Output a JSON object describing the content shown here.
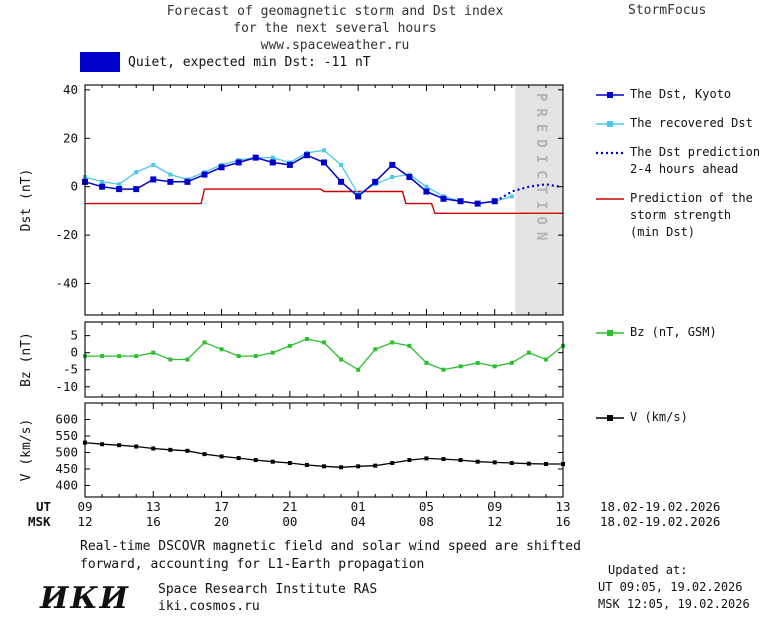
{
  "header": {
    "title_line1": "Forecast of geomagnetic storm and Dst index",
    "title_line2": "for the next several hours",
    "title_line3": "www.spaceweather.ru",
    "brand": "StormFocus"
  },
  "status": {
    "swatch_color": "#0000cc",
    "label": "Quiet, expected min Dst: -11 nT"
  },
  "chart_data": [
    {
      "type": "line",
      "ylabel": "Dst (nT)",
      "ylim": [
        -53,
        42
      ],
      "yticks": [
        40,
        20,
        0,
        -20,
        -40
      ],
      "x_unit": "hours from 09:00 UT 18.02.2026",
      "prediction_band": {
        "start_hour": 25.2,
        "end_hour": 28,
        "label": "PREDICTION",
        "fill": "#e4e4e4"
      },
      "series": [
        {
          "id": "storm-strength-prediction",
          "name": "Prediction of the storm strength (min Dst)",
          "color": "#cc0000",
          "marker": "none",
          "line_style": "solid",
          "line_width": 1.4,
          "x": [
            0,
            6.8,
            7,
            13.8,
            14,
            18.6,
            18.8,
            20.3,
            20.5,
            28
          ],
          "y": [
            -7,
            -7,
            -1,
            -1,
            -2,
            -2,
            -7,
            -7,
            -11,
            -11
          ]
        },
        {
          "id": "recovered-dst",
          "name": "The recovered Dst",
          "color": "#4cc8e8",
          "marker": "square",
          "marker_size": 4,
          "line_style": "solid",
          "line_width": 1.3,
          "x": [
            0,
            1,
            2,
            3,
            4,
            5,
            6,
            7,
            8,
            9,
            10,
            11,
            12,
            13,
            14,
            15,
            16,
            17,
            18,
            19,
            20,
            21,
            22,
            23,
            24,
            25
          ],
          "y": [
            4,
            2,
            1,
            6,
            9,
            5,
            3,
            6,
            9,
            11,
            12,
            12,
            10,
            14,
            15,
            9,
            -3,
            1,
            4,
            5,
            0,
            -4,
            -6,
            -7,
            -6,
            -4
          ]
        },
        {
          "id": "dst-kyoto",
          "name": "The Dst, Kyoto",
          "color": "#0000cc",
          "marker": "square",
          "marker_size": 6,
          "line_style": "solid",
          "line_width": 1.5,
          "x": [
            0,
            1,
            2,
            3,
            4,
            5,
            6,
            7,
            8,
            9,
            10,
            11,
            12,
            13,
            14,
            15,
            16,
            17,
            18,
            19,
            20,
            21,
            22,
            23,
            24
          ],
          "y": [
            2,
            0,
            -1,
            -1,
            3,
            2,
            2,
            5,
            8,
            10,
            12,
            10,
            9,
            13,
            10,
            2,
            -4,
            2,
            9,
            4,
            -2,
            -5,
            -6,
            -7,
            -6
          ]
        },
        {
          "id": "dst-prediction",
          "name": "The Dst prediction 2-4 hours ahead",
          "color": "#0000cc",
          "marker": "none",
          "line_style": "dotted",
          "line_width": 2.2,
          "x": [
            24.3,
            25,
            26,
            27,
            27.8
          ],
          "y": [
            -5,
            -2,
            0,
            1,
            0
          ]
        }
      ]
    },
    {
      "type": "line",
      "ylabel": "Bz (nT)",
      "ylim": [
        -13,
        9
      ],
      "yticks": [
        5,
        0,
        -5,
        -10
      ],
      "series": [
        {
          "id": "bz-gsm",
          "name": "Bz (nT, GSM)",
          "color": "#2ebf2e",
          "marker": "square",
          "marker_size": 4,
          "line_style": "solid",
          "line_width": 1.3,
          "x": [
            0,
            1,
            2,
            3,
            4,
            5,
            6,
            7,
            8,
            9,
            10,
            11,
            12,
            13,
            14,
            15,
            16,
            17,
            18,
            19,
            20,
            21,
            22,
            23,
            24,
            25,
            26,
            27,
            28
          ],
          "y": [
            -1,
            -1,
            -1,
            -1,
            0,
            -2,
            -2,
            3,
            1,
            -1,
            -1,
            0,
            2,
            4,
            3,
            -2,
            -5,
            1,
            3,
            2,
            -3,
            -5,
            -4,
            -3,
            -4,
            -3,
            0,
            -2,
            2
          ]
        }
      ]
    },
    {
      "type": "line",
      "ylabel": "V (km/s)",
      "ylim": [
        365,
        650
      ],
      "yticks": [
        600,
        550,
        500,
        450,
        400
      ],
      "series": [
        {
          "id": "solar-wind-speed",
          "name": "V (km/s)",
          "color": "#000000",
          "marker": "square",
          "marker_size": 4,
          "line_style": "solid",
          "line_width": 1.3,
          "x": [
            0,
            1,
            2,
            3,
            4,
            5,
            6,
            7,
            8,
            9,
            10,
            11,
            12,
            13,
            14,
            15,
            16,
            17,
            18,
            19,
            20,
            21,
            22,
            23,
            24,
            25,
            26,
            27,
            28
          ],
          "y": [
            530,
            525,
            522,
            518,
            512,
            508,
            505,
            495,
            488,
            483,
            477,
            472,
            468,
            462,
            458,
            455,
            458,
            460,
            468,
            477,
            482,
            480,
            477,
            472,
            470,
            468,
            466,
            465,
            465
          ]
        }
      ],
      "xaxis": {
        "tick_hours": [
          0,
          4,
          8,
          12,
          16,
          20,
          24,
          28
        ],
        "ut_label": "UT",
        "msk_label": "MSK",
        "ut_ticks": [
          "09",
          "13",
          "17",
          "21",
          "01",
          "05",
          "09",
          "13"
        ],
        "msk_ticks": [
          "12",
          "16",
          "20",
          "00",
          "04",
          "08",
          "12",
          "16"
        ],
        "ut_date": "18.02-19.02.2026",
        "msk_date": "18.02-19.02.2026"
      }
    }
  ],
  "legend": {
    "dst_panel": [
      {
        "lines": [
          "The Dst, Kyoto"
        ],
        "color": "#0000cc",
        "style": "solid-square"
      },
      {
        "lines": [
          "The recovered Dst"
        ],
        "color": "#4cc8e8",
        "style": "solid-square"
      },
      {
        "lines": [
          "The Dst prediction",
          "2-4 hours ahead"
        ],
        "color": "#0000cc",
        "style": "dotted"
      },
      {
        "lines": [
          "Prediction of the",
          "storm strength",
          "(min Dst)"
        ],
        "color": "#cc0000",
        "style": "solid"
      }
    ],
    "bz_panel": [
      {
        "lines": [
          "Bz (nT, GSM)"
        ],
        "color": "#2ebf2e",
        "style": "solid-square"
      }
    ],
    "v_panel": [
      {
        "lines": [
          "V (km/s)"
        ],
        "color": "#000000",
        "style": "solid-square"
      }
    ]
  },
  "footnote": {
    "line1": "Real-time DSCOVR magnetic field and solar wind speed are shifted",
    "line2": "forward, accounting for L1-Earth propagation"
  },
  "footer": {
    "logo_text": "ИКИ",
    "institute": "Space Research Institute RAS",
    "website": "iki.cosmos.ru",
    "updated_label": "Updated at:",
    "updated_ut": "UT  09:05, 19.02.2026",
    "updated_msk": "MSK 12:05, 19.02.2026"
  }
}
